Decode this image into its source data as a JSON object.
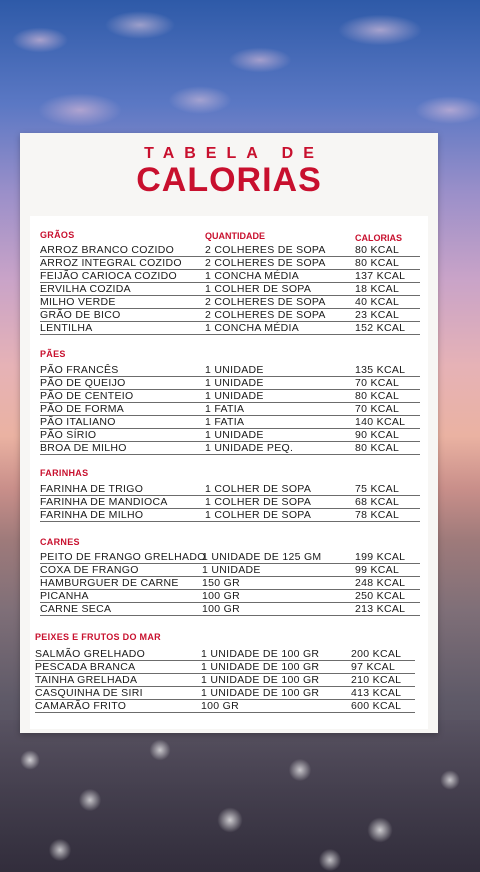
{
  "title_top": "TABELA DE",
  "title_main": "CALORIAS",
  "columns": {
    "quantity": "QUANTIDADE",
    "calories": "CALORIAS"
  },
  "sections": [
    {
      "title": "GRÃOS",
      "rows": [
        [
          "ARROZ BRANCO COZIDO",
          "2 COLHERES DE SOPA",
          "80 KCAL"
        ],
        [
          "ARROZ INTEGRAL COZIDO",
          "2 COLHERES DE SOPA",
          "80 KCAL"
        ],
        [
          "FEIJÃO CARIOCA COZIDO",
          "1 CONCHA MÉDIA",
          "137 KCAL"
        ],
        [
          "ERVILHA COZIDA",
          "1 COLHER DE SOPA",
          "18 KCAL"
        ],
        [
          "MILHO VERDE",
          "2 COLHERES DE SOPA",
          "40 KCAL"
        ],
        [
          "GRÃO DE BICO",
          "2 COLHERES DE SOPA",
          "23 KCAL"
        ],
        [
          "LENTILHA",
          "1 CONCHA MÉDIA",
          "152 KCAL"
        ]
      ]
    },
    {
      "title": "PÃES",
      "rows": [
        [
          "PÃO FRANCÊS",
          "1 UNIDADE",
          "135 KCAL"
        ],
        [
          "PÃO DE QUEIJO",
          "1 UNIDADE",
          "70 KCAL"
        ],
        [
          "PÃO DE CENTEIO",
          "1 UNIDADE",
          "80 KCAL"
        ],
        [
          "PÃO DE FORMA",
          "1 FATIA",
          "70 KCAL"
        ],
        [
          "PÃO ITALIANO",
          "1 FATIA",
          "140 KCAL"
        ],
        [
          "PÃO SÍRIO",
          "1 UNIDADE",
          "90 KCAL"
        ],
        [
          "BROA DE MILHO",
          "1 UNIDADE PEQ.",
          "80 KCAL"
        ]
      ]
    },
    {
      "title": "FARINHAS",
      "rows": [
        [
          "FARINHA DE TRIGO",
          "1 COLHER DE SOPA",
          "75 KCAL"
        ],
        [
          "FARINHA DE MANDIOCA",
          "1 COLHER DE SOPA",
          "68 KCAL"
        ],
        [
          "FARINHA DE MILHO",
          "1 COLHER DE SOPA",
          "78 KCAL"
        ]
      ]
    },
    {
      "title": "CARNES",
      "rows": [
        [
          "PEITO DE FRANGO GRELHADO",
          "1 UNIDADE DE 125 GM",
          "199 KCAL"
        ],
        [
          "COXA DE FRANGO",
          "1 UNIDADE",
          "99 KCAL"
        ],
        [
          "HAMBURGUER DE CARNE",
          "150 GR",
          "248 KCAL"
        ],
        [
          "PICANHA",
          "100 GR",
          "250 KCAL"
        ],
        [
          "CARNE SECA",
          "100 GR",
          "213 KCAL"
        ]
      ]
    },
    {
      "title": "PEIXES E FRUTOS DO MAR",
      "rows": [
        [
          "SALMÃO GRELHADO",
          "1 UNIDADE DE 100 GR",
          "200 KCAL"
        ],
        [
          "PESCADA BRANCA",
          "1 UNIDADE DE 100 GR",
          "97 KCAL"
        ],
        [
          "TAINHA GRELHADA",
          "1 UNIDADE DE 100 GR",
          "210 KCAL"
        ],
        [
          "CASQUINHA DE SIRI",
          "1 UNIDADE DE 100 GR",
          "413 KCAL"
        ],
        [
          "CAMARÃO FRITO",
          "100 GR",
          "600 KCAL"
        ]
      ]
    }
  ],
  "colors": {
    "accent": "#c8102e",
    "text": "#1a1a1a"
  }
}
